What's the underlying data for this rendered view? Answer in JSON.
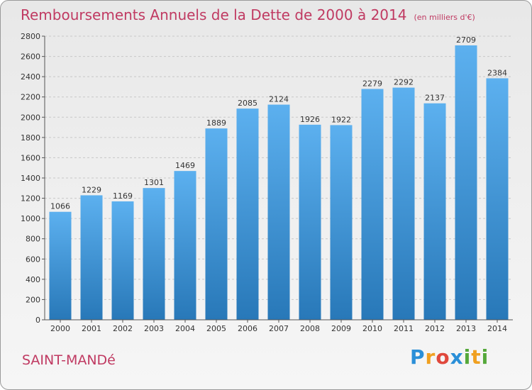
{
  "title": "Remboursements Annuels de la Dette de 2000 à 2014",
  "unit": "(en milliers d'€)",
  "commune": "SAINT-MANDé",
  "logo": "Proxiti",
  "colors": {
    "bar_top": "#5cb0ef",
    "bar_bottom": "#2878b8",
    "title": "#c03a62"
  },
  "chart_data": {
    "type": "bar",
    "title": "Remboursements Annuels de la Dette de 2000 à 2014",
    "xlabel": "",
    "ylabel": "",
    "ylim": [
      0,
      2800
    ],
    "yticks": [
      0,
      200,
      400,
      600,
      800,
      1000,
      1200,
      1400,
      1600,
      1800,
      2000,
      2200,
      2400,
      2600,
      2800
    ],
    "grid": true,
    "categories": [
      "2000",
      "2001",
      "2002",
      "2003",
      "2004",
      "2005",
      "2006",
      "2007",
      "2008",
      "2009",
      "2010",
      "2011",
      "2012",
      "2013",
      "2014"
    ],
    "values": [
      1066,
      1229,
      1169,
      1301,
      1469,
      1889,
      2085,
      2124,
      1926,
      1922,
      2279,
      2292,
      2137,
      2709,
      2384
    ]
  }
}
